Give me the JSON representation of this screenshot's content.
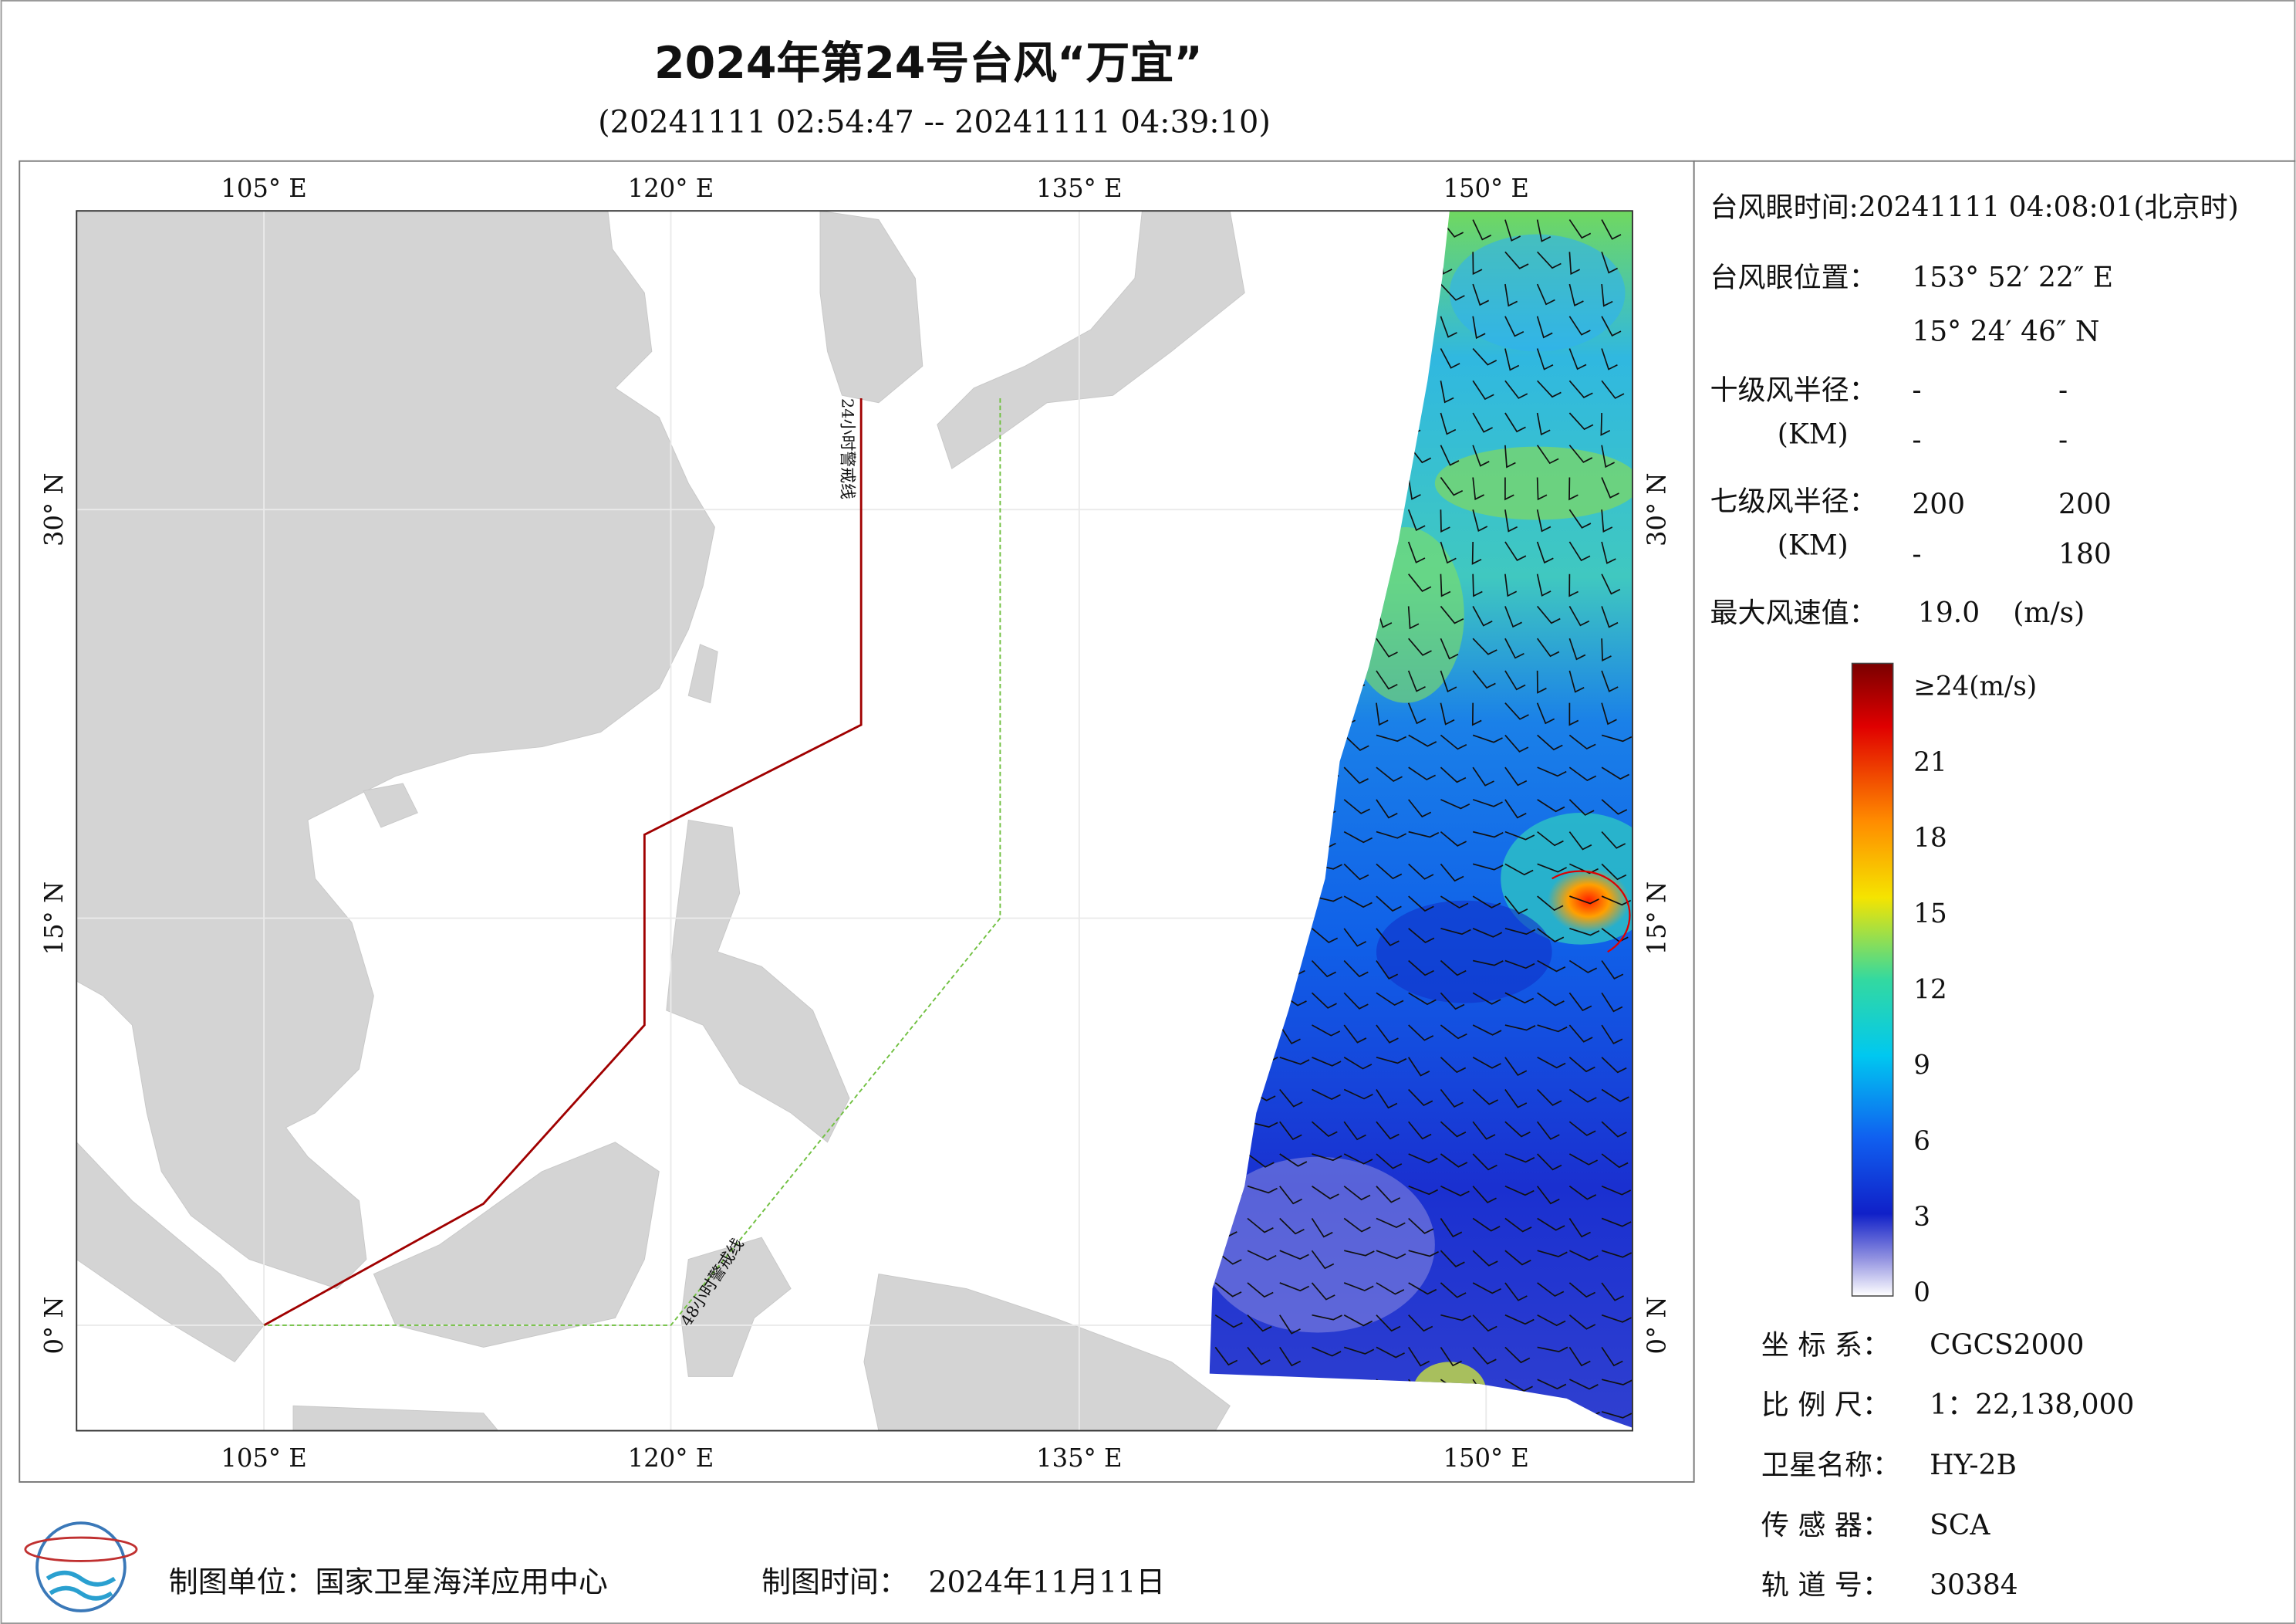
{
  "header": {
    "title": "2024年第24号台风“万宜”",
    "subtitle": "(20241111 02:54:47 -- 20241111 04:39:10)"
  },
  "map": {
    "x_labels": [
      "105° E",
      "120° E",
      "135° E",
      "150° E"
    ],
    "y_labels": [
      "0° N",
      "15° N",
      "30° N"
    ],
    "annotations": [
      "24小时警戒线",
      "48小时警戒线"
    ]
  },
  "info": {
    "eye_time": "台风眼时间:20241111 04:08:01(北京时)",
    "eye_position_label": "台风眼位置：",
    "eye_lon": "153° 52′ 22″ E",
    "eye_lat": "15° 24′ 46″ N",
    "r10_label": "十级风半径：",
    "r10_unit": "(KM)",
    "r10_values": [
      [
        "-",
        "-"
      ],
      [
        "-",
        "-"
      ]
    ],
    "r7_label": "七级风半径：",
    "r7_unit": "(KM)",
    "r7_values": [
      [
        "200",
        "200"
      ],
      [
        "-",
        "180"
      ]
    ],
    "max_wind_label": "最大风速值：",
    "max_wind_value": "19.0",
    "max_wind_unit": "(m/s)"
  },
  "colorbar": {
    "labels": [
      "≥24(m/s)",
      "21",
      "18",
      "15",
      "12",
      "9",
      "6",
      "3",
      "0"
    ]
  },
  "meta": {
    "rows": [
      [
        "坐 标 系：",
        "CGCS2000"
      ],
      [
        "比 例 尺：",
        "1：22,138,000"
      ],
      [
        "卫星名称：",
        "HY-2B"
      ],
      [
        "传 感 器：",
        "SCA"
      ],
      [
        "轨 道 号：",
        "30384"
      ]
    ]
  },
  "footer": {
    "unit_label": "制图单位：国家卫星海洋应用中心",
    "time_label": "制图时间：",
    "time_value": "2024年11月11日"
  }
}
